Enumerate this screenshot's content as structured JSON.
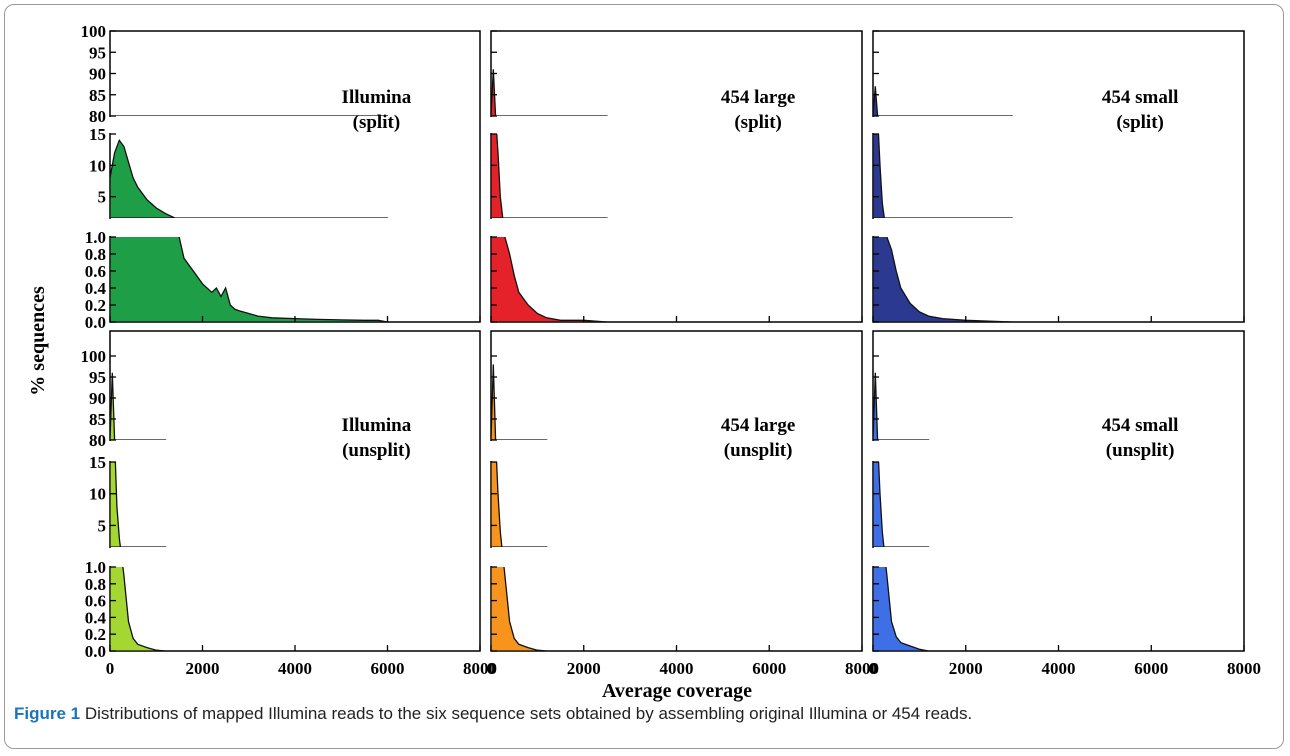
{
  "caption": {
    "label": "Figure 1",
    "text": "Distributions of mapped Illumina reads to the six sequence sets obtained by assembling original Illumina or 454 reads."
  },
  "chart_data": {
    "type": "area",
    "xlabel": "Average coverage",
    "ylabel": "% sequences",
    "xlim": [
      0,
      8000
    ],
    "x_ticks": [
      "0",
      "2000",
      "4000",
      "6000",
      "8000"
    ],
    "y_segments": [
      {
        "range": [
          0.0,
          1.0
        ],
        "ticks": [
          "0.0",
          "0.2",
          "0.4",
          "0.6",
          "0.8",
          "1.0"
        ]
      },
      {
        "range": [
          0,
          15
        ],
        "ticks": [
          "5",
          "10",
          "15"
        ]
      },
      {
        "range": [
          80,
          100
        ],
        "ticks": [
          "80",
          "85",
          "90",
          "95",
          "100"
        ]
      }
    ],
    "panels": [
      {
        "label_line1": "Illumina",
        "label_line2": "(split)",
        "color": "#1f9e48",
        "x": [
          0,
          100,
          200,
          300,
          400,
          500,
          600,
          800,
          1000,
          1200,
          1400,
          1600,
          1800,
          2000,
          2200,
          2300,
          2400,
          2500,
          2600,
          2700,
          2800,
          3000,
          3200,
          3500,
          4000,
          4500,
          5000,
          5500,
          5800,
          6000
        ],
        "y": [
          8,
          12,
          14,
          13,
          10.5,
          8,
          6.5,
          4.5,
          3.2,
          2.3,
          1.6,
          0.75,
          0.6,
          0.45,
          0.35,
          0.4,
          0.3,
          0.4,
          0.2,
          0.15,
          0.13,
          0.1,
          0.07,
          0.05,
          0.04,
          0.03,
          0.025,
          0.02,
          0.02,
          0.0
        ]
      },
      {
        "label_line1": "454 large",
        "label_line2": "(split)",
        "color": "#e5222a",
        "x": [
          0,
          50,
          100,
          150,
          200,
          300,
          400,
          500,
          600,
          800,
          1000,
          1200,
          1500,
          2000,
          2500
        ],
        "y": [
          20,
          91,
          30,
          12,
          5,
          1.0,
          0.8,
          0.55,
          0.35,
          0.2,
          0.1,
          0.05,
          0.02,
          0.02,
          0.0
        ]
      },
      {
        "label_line1": "454 small",
        "label_line2": "(split)",
        "color": "#2b3990",
        "x": [
          0,
          50,
          100,
          150,
          200,
          300,
          400,
          500,
          600,
          800,
          1000,
          1200,
          1500,
          2000,
          2500,
          3000
        ],
        "y": [
          20,
          87,
          25,
          10,
          4,
          1.0,
          0.85,
          0.6,
          0.4,
          0.22,
          0.12,
          0.07,
          0.04,
          0.02,
          0.01,
          0.0
        ]
      },
      {
        "label_line1": "Illumina",
        "label_line2": "(unsplit)",
        "color": "#a5d733",
        "x": [
          0,
          50,
          100,
          150,
          200,
          300,
          400,
          500,
          600,
          800,
          1000,
          1200
        ],
        "y": [
          20,
          96,
          20,
          8,
          3,
          0.9,
          0.35,
          0.15,
          0.08,
          0.04,
          0.01,
          0.0
        ]
      },
      {
        "label_line1": "454 large",
        "label_line2": "(unsplit)",
        "color": "#f7941d",
        "x": [
          0,
          50,
          100,
          150,
          200,
          300,
          400,
          500,
          600,
          800,
          1000,
          1200
        ],
        "y": [
          20,
          98,
          25,
          10,
          4,
          0.9,
          0.35,
          0.15,
          0.08,
          0.04,
          0.01,
          0.0
        ]
      },
      {
        "label_line1": "454 small",
        "label_line2": "(unsplit)",
        "color": "#3f6fe6",
        "x": [
          0,
          50,
          100,
          150,
          200,
          300,
          400,
          500,
          600,
          800,
          1000,
          1200
        ],
        "y": [
          20,
          96,
          25,
          10,
          4,
          0.9,
          0.35,
          0.17,
          0.1,
          0.06,
          0.02,
          0.0
        ]
      }
    ]
  }
}
